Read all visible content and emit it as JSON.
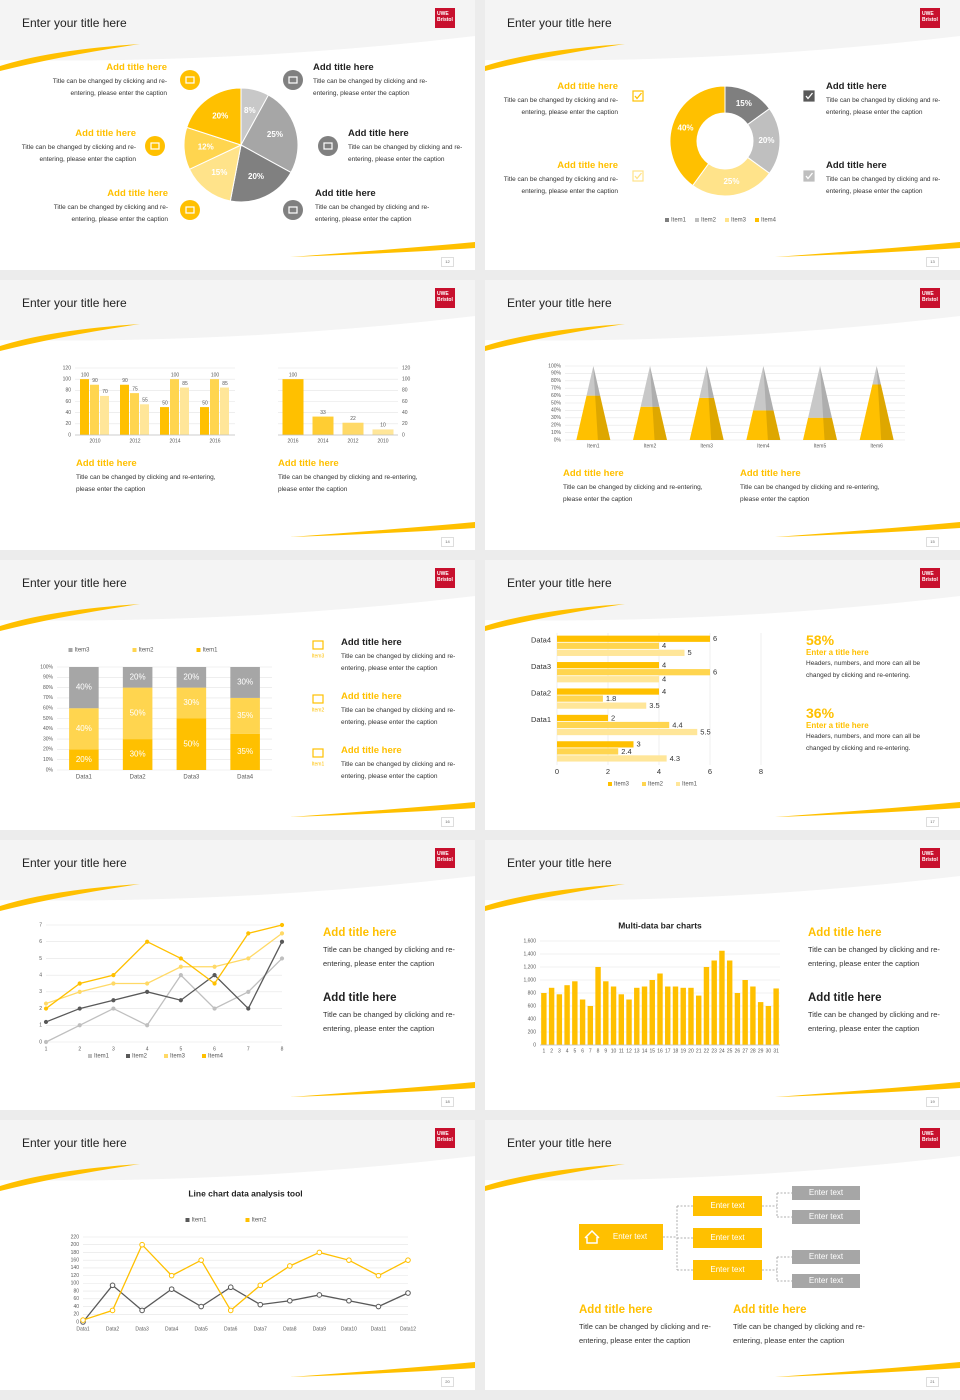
{
  "slides": [
    {
      "title": "Enter your title here",
      "logo": [
        "UWE",
        "Bristol"
      ],
      "page": 12,
      "blocks": [
        {
          "heading": "Add title here",
          "caption": "Title can be changed by clicking and re-entering, please enter the caption"
        },
        {
          "heading": "Add title here",
          "caption": "Title can be changed by clicking and re-entering, please enter the caption"
        },
        {
          "heading": "Add title here",
          "caption": "Title can be changed by clicking and re-entering, please enter the caption"
        },
        {
          "heading": "Add title here",
          "caption": "Title can be changed by clicking and re-entering, please enter the caption"
        },
        {
          "heading": "Add title here",
          "caption": "Title can be changed by clicking and re-entering, please enter the caption"
        },
        {
          "heading": "Add title here",
          "caption": "Title can be changed by clicking and re-entering, please enter the caption"
        }
      ]
    },
    {
      "title": "Enter your title here",
      "logo": [
        "UWE",
        "Bristol"
      ],
      "page": 13,
      "blocks": [
        {
          "heading": "Add title here",
          "caption": "Title can be changed by clicking and re-entering, please enter the caption"
        },
        {
          "heading": "Add title here",
          "caption": "Title can be changed by clicking and re-entering, please enter the caption"
        },
        {
          "heading": "Add title here",
          "caption": "Title can be changed by clicking and re-entering, please enter the caption"
        },
        {
          "heading": "Add title here",
          "caption": "Title can be changed by clicking and re-entering, please enter the caption"
        }
      ]
    },
    {
      "title": "Enter your title here",
      "logo": [
        "UWE",
        "Bristol"
      ],
      "page": 14,
      "blocks": [
        {
          "heading": "Add title here",
          "caption": "Title can be changed by clicking and re-entering, please enter the caption"
        },
        {
          "heading": "Add title here",
          "caption": "Title can be changed by clicking and re-entering, please enter the caption"
        }
      ]
    },
    {
      "title": "Enter your title here",
      "logo": [
        "UWE",
        "Bristol"
      ],
      "page": 15,
      "blocks": [
        {
          "heading": "Add title here",
          "caption": "Title can be changed by clicking and re-entering, please enter the caption"
        },
        {
          "heading": "Add title here",
          "caption": "Title can be changed by clicking and re-entering, please enter the caption"
        }
      ]
    },
    {
      "title": "Enter your title here",
      "logo": [
        "UWE",
        "Bristol"
      ],
      "page": 16,
      "blocks": [
        {
          "icon_label": "Item3",
          "heading": "Add title here",
          "caption": "Title can be changed by clicking and re-entering, please enter the caption"
        },
        {
          "icon_label": "Item2",
          "heading": "Add title here",
          "caption": "Title can be changed by clicking and re-entering, please enter the caption"
        },
        {
          "icon_label": "Item1",
          "heading": "Add title here",
          "caption": "Title can be changed by clicking and re-entering, please enter the caption"
        }
      ]
    },
    {
      "title": "Enter your title here",
      "logo": [
        "UWE",
        "Bristol"
      ],
      "page": 17,
      "blocks": [
        {
          "stat": "58%",
          "heading": "Enter a title here",
          "caption": "Headers, numbers, and more can all be changed by clicking and re-entering."
        },
        {
          "stat": "36%",
          "heading": "Enter a title here",
          "caption": "Headers, numbers, and more can all be changed by clicking and re-entering."
        }
      ]
    },
    {
      "title": "Enter your title here",
      "logo": [
        "UWE",
        "Bristol"
      ],
      "page": 18,
      "blocks": [
        {
          "heading": "Add title here",
          "caption": "Title can be changed by clicking and re-entering, please enter the caption"
        },
        {
          "heading": "Add title here",
          "caption": "Title can be changed by clicking and re-entering, please enter the caption"
        }
      ]
    },
    {
      "title": "Enter your title here",
      "logo": [
        "UWE",
        "Bristol"
      ],
      "page": 19,
      "blocks": [
        {
          "heading": "Add title here",
          "caption": "Title can be changed by clicking and re-entering, please enter the caption"
        },
        {
          "heading": "Add title here",
          "caption": "Title can be changed by clicking and re-entering, please enter the caption"
        }
      ]
    },
    {
      "title": "Enter your title here",
      "logo": [
        "UWE",
        "Bristol"
      ],
      "page": 20
    },
    {
      "title": "Enter your title here",
      "logo": [
        "UWE",
        "Bristol"
      ],
      "page": 21,
      "diagram": {
        "root": "Enter text",
        "middle": [
          "Enter text",
          "Enter text",
          "Enter text"
        ],
        "leaves": [
          "Enter text",
          "Enter text",
          "Enter text",
          "Enter text"
        ]
      },
      "blocks": [
        {
          "heading": "Add title here",
          "caption": "Title can be changed by clicking and re-entering, please enter the caption"
        },
        {
          "heading": "Add title here",
          "caption": "Title can be changed by clicking and re-entering, please enter the caption"
        }
      ]
    }
  ],
  "chart_data": [
    {
      "type": "pie",
      "values": [
        8,
        25,
        20,
        15,
        12,
        20
      ],
      "value_labels": [
        "8%",
        "25%",
        "20%",
        "15%",
        "12%",
        "20%"
      ],
      "colors": [
        "#c8c8c8",
        "#a6a6a6",
        "#808080",
        "#ffe38a",
        "#ffd54f",
        "#ffc000"
      ]
    },
    {
      "type": "donut",
      "categories": [
        "Item1",
        "Item2",
        "Item3",
        "Item4"
      ],
      "values": [
        15,
        20,
        25,
        40
      ],
      "value_labels": [
        "15%",
        "20%",
        "25%",
        "40%"
      ],
      "colors": [
        "#7f7f7f",
        "#bfbfbf",
        "#ffe38a",
        "#ffc000"
      ]
    },
    {
      "type": "bar",
      "categories": [
        "2010",
        "2012",
        "2014",
        "2016"
      ],
      "series": [
        {
          "color": "#ffc000",
          "values": [
            100,
            90,
            50,
            50
          ]
        },
        {
          "color": "#ffd54f",
          "values": [
            90,
            75,
            100,
            100
          ]
        },
        {
          "color": "#ffe699",
          "values": [
            70,
            55,
            85,
            85
          ]
        }
      ],
      "ylim": [
        0,
        120
      ],
      "yticks": [
        0,
        20,
        40,
        60,
        80,
        100,
        120
      ],
      "data_labels": true
    },
    {
      "type": "bar",
      "categories": [
        "2016",
        "2014",
        "2012",
        "2010"
      ],
      "values": [
        100,
        33,
        22,
        10
      ],
      "colors": [
        "#ffc000",
        "#ffcd33",
        "#ffd966",
        "#ffe699"
      ],
      "ylim": [
        0,
        120
      ],
      "yticks": [
        0,
        20,
        40,
        60,
        80,
        100,
        120
      ],
      "data_labels": true
    },
    {
      "type": "pyramid",
      "categories": [
        "Item1",
        "Item2",
        "Item3",
        "Item4",
        "Item5",
        "Item6"
      ],
      "series": [
        {
          "color": "#ffc000",
          "values": [
            60,
            45,
            57,
            40,
            30,
            75
          ]
        },
        {
          "color": "#c8c8c8",
          "values": [
            40,
            55,
            43,
            60,
            70,
            25
          ]
        }
      ],
      "ylim": [
        0,
        100
      ],
      "yticks": [
        {
          "value": 0,
          "label": "0%"
        },
        {
          "value": 10,
          "label": "10%"
        },
        {
          "value": 20,
          "label": "20%"
        },
        {
          "value": 30,
          "label": "30%"
        },
        {
          "value": 40,
          "label": "40%"
        },
        {
          "value": 50,
          "label": "50%"
        },
        {
          "value": 60,
          "label": "60%"
        },
        {
          "value": 70,
          "label": "70%"
        },
        {
          "value": 80,
          "label": "80%"
        },
        {
          "value": 90,
          "label": "90%"
        },
        {
          "value": 100,
          "label": "100%"
        }
      ]
    },
    {
      "type": "stacked_bar",
      "categories": [
        "Data1",
        "Data2",
        "Data3",
        "Data4"
      ],
      "series": [
        {
          "name": "Item1",
          "color": "#ffc000",
          "values": [
            20,
            30,
            50,
            35
          ],
          "value_labels": [
            "20%",
            "30%",
            "50%",
            "35%"
          ]
        },
        {
          "name": "Item2",
          "color": "#ffd54f",
          "values": [
            40,
            50,
            30,
            35
          ],
          "value_labels": [
            "40%",
            "50%",
            "30%",
            "35%"
          ]
        },
        {
          "name": "Item3",
          "color": "#a6a6a6",
          "values": [
            40,
            20,
            20,
            30
          ],
          "value_labels": [
            "40%",
            "20%",
            "20%",
            "30%"
          ]
        }
      ],
      "ylim": [
        0,
        100
      ],
      "yticks": [
        {
          "value": 0,
          "label": "0%"
        },
        {
          "value": 10,
          "label": "10%"
        },
        {
          "value": 20,
          "label": "20%"
        },
        {
          "value": 30,
          "label": "30%"
        },
        {
          "value": 40,
          "label": "40%"
        },
        {
          "value": 50,
          "label": "50%"
        },
        {
          "value": 60,
          "label": "60%"
        },
        {
          "value": 70,
          "label": "70%"
        },
        {
          "value": 80,
          "label": "80%"
        },
        {
          "value": 90,
          "label": "90%"
        },
        {
          "value": 100,
          "label": "100%"
        }
      ]
    },
    {
      "type": "hbar",
      "categories": [
        null,
        "Data1",
        "Data2",
        "Data3",
        "Data4"
      ],
      "series": [
        {
          "name": "Item3",
          "color": "#ffc000",
          "values": [
            3,
            2,
            4,
            4,
            6
          ]
        },
        {
          "name": "Item2",
          "color": "#ffd54f",
          "values": [
            2.4,
            4.4,
            1.8,
            6,
            4
          ]
        },
        {
          "name": "Item1",
          "color": "#ffe699",
          "values": [
            4.3,
            5.5,
            3.5,
            4,
            5
          ]
        }
      ],
      "xlim": [
        0,
        8
      ],
      "xticks": [
        0,
        2,
        4,
        6,
        8
      ],
      "data_labels": true
    },
    {
      "type": "line",
      "x": [
        1,
        2,
        3,
        4,
        5,
        6,
        7,
        8
      ],
      "series": [
        {
          "name": "Item1",
          "color": "#bfbfbf",
          "values": [
            0,
            1,
            2,
            1,
            4,
            2,
            3,
            5
          ]
        },
        {
          "name": "Item2",
          "color": "#595959",
          "values": [
            1.2,
            2,
            2.5,
            3,
            2.5,
            4,
            2,
            6
          ]
        },
        {
          "name": "Item3",
          "color": "#ffd966",
          "values": [
            2.3,
            3,
            3.5,
            3.5,
            4.5,
            4.5,
            5,
            6.5
          ]
        },
        {
          "name": "Item4",
          "color": "#ffc000",
          "values": [
            2,
            3.5,
            4,
            6,
            5,
            3.5,
            6.5,
            7
          ]
        }
      ],
      "xlim": [
        1,
        8
      ],
      "xticks": [
        1,
        2,
        3,
        4,
        5,
        6,
        7,
        8
      ],
      "ylim": [
        0,
        7
      ],
      "yticks": [
        0,
        1,
        2,
        3,
        4,
        5,
        6,
        7
      ]
    },
    {
      "type": "bar",
      "title": "Multi-data bar charts",
      "categories": [
        "1",
        "2",
        "3",
        "4",
        "5",
        "6",
        "7",
        "8",
        "9",
        "10",
        "11",
        "12",
        "13",
        "14",
        "15",
        "16",
        "17",
        "18",
        "19",
        "20",
        "21",
        "22",
        "23",
        "24",
        "25",
        "26",
        "27",
        "28",
        "29",
        "30",
        "31"
      ],
      "values": [
        800,
        880,
        780,
        920,
        980,
        700,
        600,
        1200,
        980,
        900,
        780,
        700,
        880,
        900,
        1000,
        1100,
        900,
        900,
        880,
        880,
        760,
        1200,
        1300,
        1450,
        1300,
        800,
        1000,
        900,
        660,
        600,
        870
      ],
      "color": "#ffc000",
      "ylim": [
        0,
        1600
      ],
      "yticks": [
        0,
        200,
        400,
        600,
        800,
        {
          "value": 1000,
          "label": "1,000"
        },
        {
          "value": 1200,
          "label": "1,200"
        },
        {
          "value": 1400,
          "label": "1,400"
        },
        {
          "value": 1600,
          "label": "1,600"
        }
      ]
    },
    {
      "type": "line",
      "title": "Line chart data analysis tool",
      "categories": [
        "Data1",
        "Data2",
        "Data3",
        "Data4",
        "Data5",
        "Data6",
        "Data7",
        "Data8",
        "Data9",
        "Data10",
        "Data11",
        "Data12"
      ],
      "series": [
        {
          "name": "Item1",
          "color": "#595959",
          "values": [
            0,
            95,
            30,
            85,
            40,
            90,
            45,
            55,
            70,
            55,
            40,
            75
          ]
        },
        {
          "name": "Item2",
          "color": "#ffc000",
          "values": [
            5,
            30,
            200,
            120,
            160,
            30,
            95,
            145,
            180,
            160,
            120,
            160
          ]
        }
      ],
      "ylim": [
        0,
        220
      ],
      "yticks": [
        0,
        20,
        40,
        60,
        80,
        100,
        120,
        140,
        160,
        180,
        200,
        220
      ]
    }
  ]
}
